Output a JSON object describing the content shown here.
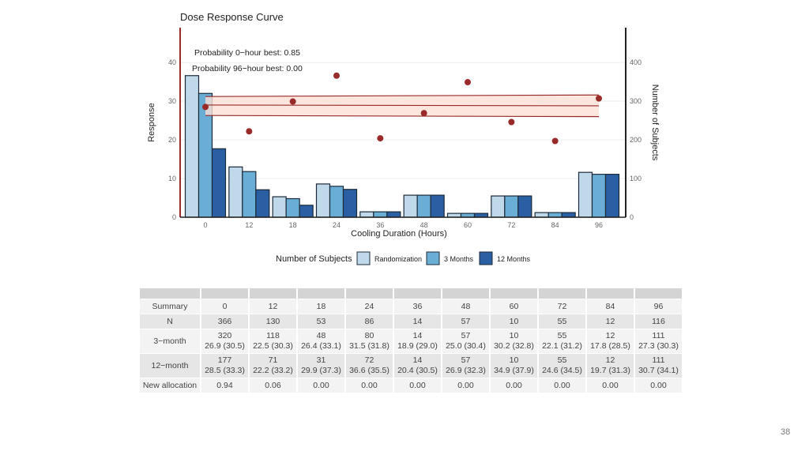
{
  "chart_data": {
    "type": "bar",
    "title": "Dose Response Curve",
    "xlabel": "Cooling Duration (Hours)",
    "ylabel": "Response",
    "y2label": "Number of Subjects",
    "categories": [
      "0",
      "12",
      "18",
      "24",
      "36",
      "48",
      "60",
      "72",
      "84",
      "96"
    ],
    "ylim": [
      0,
      49
    ],
    "yticks": [
      0,
      10,
      20,
      30,
      40
    ],
    "y2lim": [
      0,
      490
    ],
    "y2ticks": [
      0,
      100,
      200,
      300,
      400
    ],
    "series": [
      {
        "name": "Randomization",
        "color": "#c0d9ea",
        "values": [
          366,
          130,
          53,
          86,
          14,
          57,
          10,
          55,
          12,
          116
        ]
      },
      {
        "name": "3 Months",
        "color": "#6aaed6",
        "values": [
          320,
          118,
          48,
          80,
          14,
          57,
          10,
          55,
          12,
          111
        ]
      },
      {
        "name": "12 Months",
        "color": "#2a5fa3",
        "values": [
          177,
          71,
          31,
          72,
          14,
          57,
          10,
          55,
          12,
          111
        ]
      }
    ],
    "points": {
      "name": "Observed response",
      "color": "#992a2a",
      "values": [
        28.5,
        22.2,
        29.9,
        36.6,
        20.4,
        26.9,
        34.9,
        24.6,
        19.7,
        30.7
      ]
    },
    "fit": {
      "color": "#992a2a",
      "fill": "#fbe0d6",
      "x": [
        0,
        96
      ],
      "mean": [
        29.0,
        28.8
      ],
      "upper": [
        31.2,
        31.6
      ],
      "lower": [
        26.3,
        26.0
      ]
    },
    "annotations": [
      "Probability 0−hour best: 0.85",
      "Probability 96−hour best: 0.00"
    ],
    "legend": {
      "title": "Number of Subjects",
      "placement": "bottom"
    },
    "grid": true
  },
  "table": {
    "header_row": [
      "",
      "",
      "",
      "",
      "",
      "",
      "",
      "",
      "",
      "",
      ""
    ],
    "rows": [
      {
        "label": "Summary",
        "cells": [
          "0",
          "12",
          "18",
          "24",
          "36",
          "48",
          "60",
          "72",
          "84",
          "96"
        ]
      },
      {
        "label": "N",
        "cells": [
          "366",
          "130",
          "53",
          "86",
          "14",
          "57",
          "10",
          "55",
          "12",
          "116"
        ]
      },
      {
        "label": "3−month",
        "cells": [
          "320",
          "118",
          "48",
          "80",
          "14",
          "57",
          "10",
          "55",
          "12",
          "111"
        ],
        "sub": [
          "26.9 (30.5)",
          "22.5 (30.3)",
          "26.4 (33.1)",
          "31.5 (31.8)",
          "18.9 (29.0)",
          "25.0 (30.4)",
          "30.2 (32.8)",
          "22.1 (31.2)",
          "17.8 (28.5)",
          "27.3 (30.3)"
        ]
      },
      {
        "label": "12−month",
        "cells": [
          "177",
          "71",
          "31",
          "72",
          "14",
          "57",
          "10",
          "55",
          "12",
          "111"
        ],
        "sub": [
          "28.5 (33.3)",
          "22.2 (33.2)",
          "29.9 (37.3)",
          "36.6 (35.5)",
          "20.4 (30.5)",
          "26.9 (32.3)",
          "34.9 (37.9)",
          "24.6 (34.5)",
          "19.7 (31.3)",
          "30.7 (34.1)"
        ]
      },
      {
        "label": "New allocation",
        "cells": [
          "0.94",
          "0.06",
          "0.00",
          "0.00",
          "0.00",
          "0.00",
          "0.00",
          "0.00",
          "0.00",
          "0.00"
        ]
      }
    ]
  },
  "page_number": "38"
}
